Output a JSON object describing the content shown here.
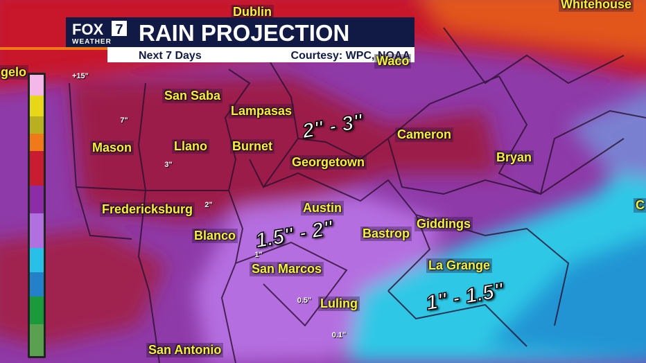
{
  "header": {
    "logo_main": "FOX",
    "logo_number": "7",
    "logo_sub": "WEATHER",
    "title": "RAIN PROJECTION",
    "subtitle": "Next 7 Days",
    "credit": "Courtesy: WPC, NOAA"
  },
  "legend": {
    "labels": [
      "+15\"",
      "7\"",
      "3\"",
      "2\"",
      "1\"",
      "0.5\"",
      "0.1\""
    ]
  },
  "cities": [
    {
      "label": "Dublin"
    },
    {
      "label": "Whitehouse"
    },
    {
      "label": "Waco"
    },
    {
      "label": "gelo"
    },
    {
      "label": "San Saba"
    },
    {
      "label": "Lampasas"
    },
    {
      "label": "Mason"
    },
    {
      "label": "Llano"
    },
    {
      "label": "Burnet"
    },
    {
      "label": "Cameron"
    },
    {
      "label": "Georgetown"
    },
    {
      "label": "Bryan"
    },
    {
      "label": "Fredericksburg"
    },
    {
      "label": "Austin"
    },
    {
      "label": "Giddings"
    },
    {
      "label": "Blanco"
    },
    {
      "label": "Bastrop"
    },
    {
      "label": "San Marcos"
    },
    {
      "label": "La Grange"
    },
    {
      "label": "Luling"
    },
    {
      "label": "San Antonio"
    },
    {
      "label": "C"
    }
  ],
  "zones": [
    {
      "label": "2\" - 3\""
    },
    {
      "label": "1.5\" - 2\""
    },
    {
      "label": "1\" - 1.5\""
    }
  ]
}
